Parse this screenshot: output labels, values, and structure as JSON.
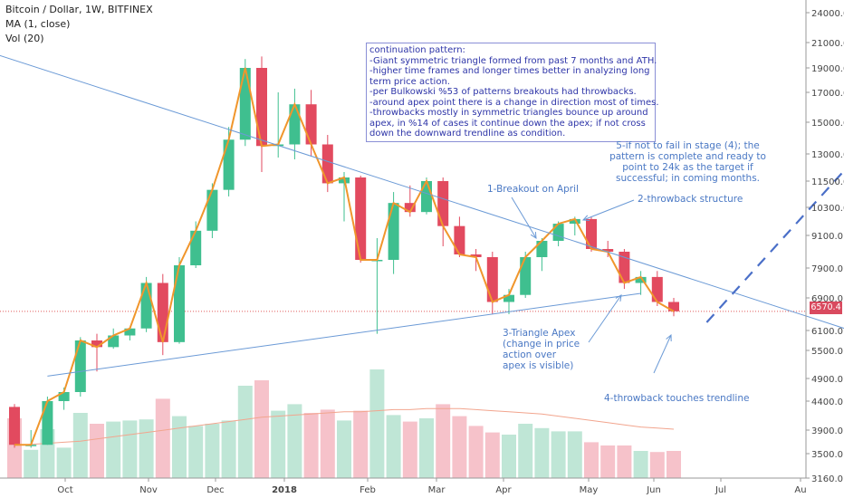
{
  "header": {
    "title": "Bitcoin / Dollar, 1W, BITFINEX",
    "ma": "MA (1, close)",
    "vol": "Vol (20)"
  },
  "price_label": "6570.4",
  "colors": {
    "up": "#3fbf8f",
    "down": "#e24a5f",
    "vol_up": "#bfe6d6",
    "vol_down": "#f6c2ca",
    "ma": "#f0962c",
    "vol_ma": "#f2a58e",
    "trend": "#6b9ad6",
    "price_line": "#e05a5a"
  },
  "note": {
    "lines": [
      "continuation pattern:",
      "-Giant symmetric triangle formed from past 7 months and ATH.",
      "-higher time frames and longer times better in analyzing long",
      "term price action.",
      "-per Bulkowski %53 of patterns breakouts had throwbacks.",
      "-around apex point there is a change in direction most of times.",
      "-throwbacks mostly in symmetric triangles bounce up around",
      "apex, in %14 of cases it continue down the apex; if not cross",
      "down the downward trendline as condition."
    ]
  },
  "annotations": {
    "breakout": "1-Breakout on April",
    "throwback_structure": "2-throwback structure",
    "apex": [
      "3-Triangle Apex",
      "(change in price",
      "action over",
      "apex is visible)"
    ],
    "touch": "4-throwback touches trendline",
    "target": [
      "5-if not to fail in stage (4); the",
      "pattern is complete and ready to",
      "point to 24k as the target if",
      "successful; in coming months."
    ]
  },
  "chart_data": {
    "type": "candlestick",
    "title": "Bitcoin / Dollar, 1W, BITFINEX",
    "y_axis_ticks": [
      "24000.0",
      "21000.0",
      "19000.0",
      "17000.0",
      "15000.0",
      "13000.0",
      "11500.0",
      "10300.0",
      "9100.0",
      "7900.0",
      "6900.0",
      "6100.0",
      "5500.0",
      "4900.0",
      "4400.0",
      "3900.0",
      "3500.0",
      "3160.0"
    ],
    "x_axis_ticks": [
      "Oct",
      "Nov",
      "Dec",
      "2018",
      "Feb",
      "Mar",
      "Apr",
      "May",
      "Jun",
      "Jul",
      "Au"
    ],
    "candles": [
      {
        "o": 4300,
        "h": 4350,
        "l": 3600,
        "c": 3650
      },
      {
        "o": 3650,
        "h": 3900,
        "l": 3600,
        "c": 3650
      },
      {
        "o": 3650,
        "h": 4500,
        "l": 3650,
        "c": 4400
      },
      {
        "o": 4400,
        "h": 4700,
        "l": 4250,
        "c": 4600
      },
      {
        "o": 4600,
        "h": 5900,
        "l": 4500,
        "c": 5800
      },
      {
        "o": 5800,
        "h": 6000,
        "l": 5050,
        "c": 5600
      },
      {
        "o": 5600,
        "h": 6150,
        "l": 5550,
        "c": 5950
      },
      {
        "o": 5950,
        "h": 6150,
        "l": 5800,
        "c": 6150
      },
      {
        "o": 6150,
        "h": 7600,
        "l": 6050,
        "c": 7400
      },
      {
        "o": 7400,
        "h": 7700,
        "l": 5400,
        "c": 5750
      },
      {
        "o": 5750,
        "h": 8300,
        "l": 5700,
        "c": 8000
      },
      {
        "o": 8000,
        "h": 9700,
        "l": 7900,
        "c": 9300
      },
      {
        "o": 9300,
        "h": 11400,
        "l": 9000,
        "c": 11100
      },
      {
        "o": 11100,
        "h": 14700,
        "l": 10800,
        "c": 13900
      },
      {
        "o": 13900,
        "h": 19700,
        "l": 13500,
        "c": 19000
      },
      {
        "o": 19000,
        "h": 19900,
        "l": 12000,
        "c": 13500
      },
      {
        "o": 13500,
        "h": 17000,
        "l": 12800,
        "c": 13600
      },
      {
        "o": 13600,
        "h": 17300,
        "l": 12700,
        "c": 16200
      },
      {
        "o": 16200,
        "h": 17200,
        "l": 12900,
        "c": 13600
      },
      {
        "o": 13600,
        "h": 14200,
        "l": 11000,
        "c": 11400
      },
      {
        "o": 11400,
        "h": 12000,
        "l": 9700,
        "c": 11700
      },
      {
        "o": 11700,
        "h": 11800,
        "l": 8100,
        "c": 8200
      },
      {
        "o": 8200,
        "h": 9000,
        "l": 6000,
        "c": 8200
      },
      {
        "o": 8200,
        "h": 11000,
        "l": 7700,
        "c": 10500
      },
      {
        "o": 10500,
        "h": 11300,
        "l": 9900,
        "c": 10100
      },
      {
        "o": 10100,
        "h": 11700,
        "l": 10000,
        "c": 11500
      },
      {
        "o": 11500,
        "h": 11700,
        "l": 8700,
        "c": 9500
      },
      {
        "o": 9500,
        "h": 9900,
        "l": 8300,
        "c": 8400
      },
      {
        "o": 8400,
        "h": 8600,
        "l": 7800,
        "c": 8300
      },
      {
        "o": 8300,
        "h": 8500,
        "l": 6500,
        "c": 6800
      },
      {
        "o": 6800,
        "h": 7200,
        "l": 6500,
        "c": 7000
      },
      {
        "o": 7000,
        "h": 8500,
        "l": 6900,
        "c": 8300
      },
      {
        "o": 8300,
        "h": 9000,
        "l": 7800,
        "c": 8900
      },
      {
        "o": 8900,
        "h": 9700,
        "l": 8700,
        "c": 9600
      },
      {
        "o": 9600,
        "h": 9900,
        "l": 9100,
        "c": 9800
      },
      {
        "o": 9800,
        "h": 9900,
        "l": 8500,
        "c": 8600
      },
      {
        "o": 8600,
        "h": 8900,
        "l": 8300,
        "c": 8500
      },
      {
        "o": 8500,
        "h": 8600,
        "l": 7200,
        "c": 7400
      },
      {
        "o": 7400,
        "h": 7800,
        "l": 7000,
        "c": 7600
      },
      {
        "o": 7600,
        "h": 7800,
        "l": 6700,
        "c": 6800
      },
      {
        "o": 6800,
        "h": 6900,
        "l": 6450,
        "c": 6570.4
      }
    ],
    "volume": [
      0.55,
      0.26,
      0.45,
      0.28,
      0.6,
      0.5,
      0.52,
      0.53,
      0.54,
      0.73,
      0.57,
      0.48,
      0.5,
      0.53,
      0.85,
      0.9,
      0.62,
      0.68,
      0.6,
      0.63,
      0.53,
      0.62,
      1.0,
      0.58,
      0.52,
      0.55,
      0.68,
      0.57,
      0.48,
      0.42,
      0.4,
      0.5,
      0.46,
      0.43,
      0.43,
      0.33,
      0.3,
      0.3,
      0.25,
      0.24,
      0.25
    ],
    "volume_ma": [
      0.3,
      0.31,
      0.32,
      0.33,
      0.34,
      0.36,
      0.38,
      0.4,
      0.42,
      0.44,
      0.46,
      0.48,
      0.5,
      0.52,
      0.54,
      0.56,
      0.57,
      0.58,
      0.59,
      0.6,
      0.61,
      0.61,
      0.62,
      0.63,
      0.63,
      0.64,
      0.64,
      0.64,
      0.63,
      0.62,
      0.61,
      0.6,
      0.59,
      0.57,
      0.55,
      0.53,
      0.51,
      0.49,
      0.47,
      0.46,
      0.45
    ],
    "trendlines": [
      {
        "name": "upper",
        "from": [
          -8,
          23500
        ],
        "to": [
          58,
          5100
        ]
      },
      {
        "name": "lower",
        "from": [
          2,
          4950
        ],
        "to": [
          38,
          7050
        ]
      }
    ],
    "projection": {
      "from": [
        42,
        6300
      ],
      "to": [
        53,
        15000
      ]
    },
    "last_price": 6570.4
  }
}
